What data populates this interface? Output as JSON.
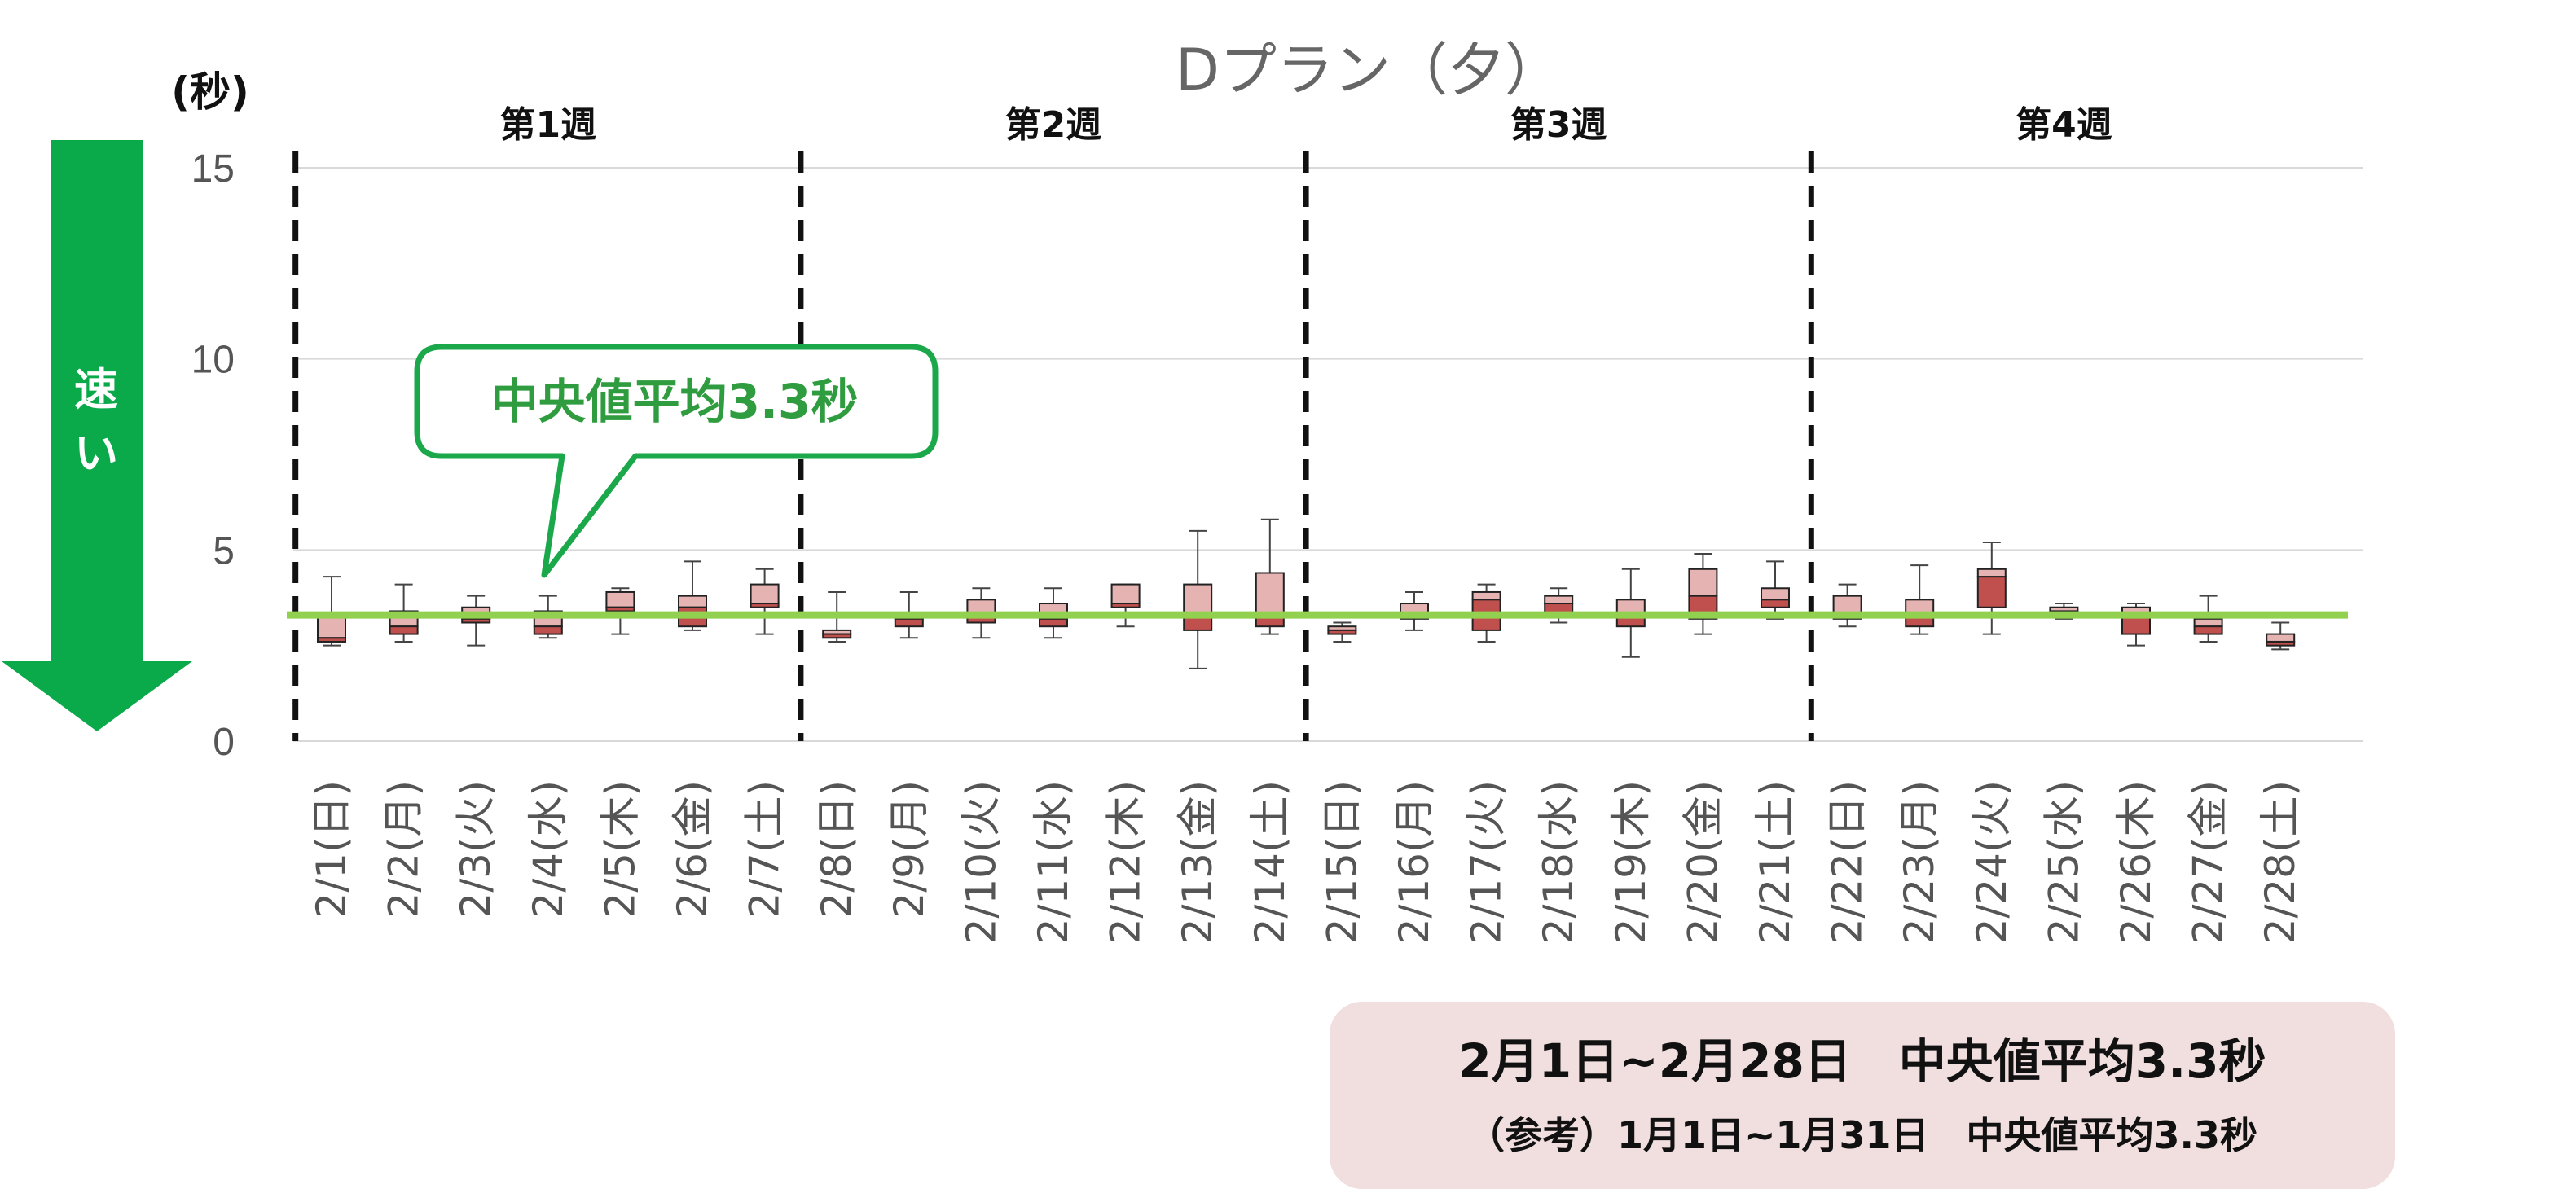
{
  "chart_data": {
    "type": "box",
    "title": "Dプラン（夕）",
    "ylabel": "(秒)",
    "ylim": [
      0,
      15
    ],
    "yticks": [
      0,
      5,
      10,
      15
    ],
    "grid": true,
    "categories": [
      "2/1(日)",
      "2/2(月)",
      "2/3(火)",
      "2/4(水)",
      "2/5(木)",
      "2/6(金)",
      "2/7(土)",
      "2/8(日)",
      "2/9(月)",
      "2/10(火)",
      "2/11(水)",
      "2/12(木)",
      "2/13(金)",
      "2/14(土)",
      "2/15(日)",
      "2/16(月)",
      "2/17(火)",
      "2/18(水)",
      "2/19(木)",
      "2/20(金)",
      "2/21(土)",
      "2/22(日)",
      "2/23(月)",
      "2/24(火)",
      "2/25(水)",
      "2/26(木)",
      "2/27(金)",
      "2/28(土)"
    ],
    "boxes": [
      {
        "min": 2.5,
        "q1": 2.6,
        "median": 2.7,
        "q3": 3.3,
        "max": 4.3
      },
      {
        "min": 2.6,
        "q1": 2.8,
        "median": 3.0,
        "q3": 3.4,
        "max": 4.1
      },
      {
        "min": 2.5,
        "q1": 3.1,
        "median": 3.2,
        "q3": 3.5,
        "max": 3.8
      },
      {
        "min": 2.7,
        "q1": 2.8,
        "median": 3.0,
        "q3": 3.4,
        "max": 3.8
      },
      {
        "min": 2.8,
        "q1": 3.4,
        "median": 3.5,
        "q3": 3.9,
        "max": 4.0
      },
      {
        "min": 2.9,
        "q1": 3.0,
        "median": 3.5,
        "q3": 3.8,
        "max": 4.7
      },
      {
        "min": 2.8,
        "q1": 3.5,
        "median": 3.6,
        "q3": 4.1,
        "max": 4.5
      },
      {
        "min": 2.6,
        "q1": 2.7,
        "median": 2.8,
        "q3": 2.9,
        "max": 3.9
      },
      {
        "min": 2.7,
        "q1": 3.0,
        "median": 3.2,
        "q3": 3.3,
        "max": 3.9
      },
      {
        "min": 2.7,
        "q1": 3.1,
        "median": 3.3,
        "q3": 3.7,
        "max": 4.0
      },
      {
        "min": 2.7,
        "q1": 3.0,
        "median": 3.2,
        "q3": 3.6,
        "max": 4.0
      },
      {
        "min": 3.0,
        "q1": 3.5,
        "median": 3.6,
        "q3": 4.1,
        "max": 4.1
      },
      {
        "min": 1.9,
        "q1": 2.9,
        "median": 3.3,
        "q3": 4.1,
        "max": 5.5
      },
      {
        "min": 2.8,
        "q1": 3.0,
        "median": 3.3,
        "q3": 4.4,
        "max": 5.8
      },
      {
        "min": 2.6,
        "q1": 2.8,
        "median": 2.9,
        "q3": 3.0,
        "max": 3.1
      },
      {
        "min": 2.9,
        "q1": 3.2,
        "median": 3.3,
        "q3": 3.6,
        "max": 3.9
      },
      {
        "min": 2.6,
        "q1": 2.9,
        "median": 3.7,
        "q3": 3.9,
        "max": 4.1
      },
      {
        "min": 3.1,
        "q1": 3.3,
        "median": 3.6,
        "q3": 3.8,
        "max": 4.0
      },
      {
        "min": 2.2,
        "q1": 3.0,
        "median": 3.3,
        "q3": 3.7,
        "max": 4.5
      },
      {
        "min": 2.8,
        "q1": 3.2,
        "median": 3.8,
        "q3": 4.5,
        "max": 4.9
      },
      {
        "min": 3.2,
        "q1": 3.5,
        "median": 3.7,
        "q3": 4.0,
        "max": 4.7
      },
      {
        "min": 3.0,
        "q1": 3.2,
        "median": 3.3,
        "q3": 3.8,
        "max": 4.1
      },
      {
        "min": 2.8,
        "q1": 3.0,
        "median": 3.3,
        "q3": 3.7,
        "max": 4.6
      },
      {
        "min": 2.8,
        "q1": 3.5,
        "median": 4.3,
        "q3": 4.5,
        "max": 5.2
      },
      {
        "min": 3.2,
        "q1": 3.3,
        "median": 3.4,
        "q3": 3.5,
        "max": 3.6
      },
      {
        "min": 2.5,
        "q1": 2.8,
        "median": 3.3,
        "q3": 3.5,
        "max": 3.6
      },
      {
        "min": 2.6,
        "q1": 2.8,
        "median": 3.0,
        "q3": 3.2,
        "max": 3.8
      },
      {
        "min": 2.4,
        "q1": 2.5,
        "median": 2.6,
        "q3": 2.8,
        "max": 3.1
      }
    ],
    "average_median": 3.3,
    "weeks": [
      {
        "label": "第1週",
        "start": 0,
        "end": 7
      },
      {
        "label": "第2週",
        "start": 7,
        "end": 14
      },
      {
        "label": "第3週",
        "start": 14,
        "end": 21
      },
      {
        "label": "第4週",
        "start": 21,
        "end": 28
      }
    ],
    "colors": {
      "box_upper": "#e6b3b3",
      "box_lower": "#c0504d",
      "box_stroke": "#222222",
      "average_line": "#92d050",
      "grid": "#d9d9d9",
      "week_divider": "#111111",
      "arrow": "#0aaa4a",
      "callout": "#1aa84a"
    }
  },
  "labels": {
    "speed": "速い",
    "callout": "中央値平均3.3秒",
    "summary_main": "2月1日~2月28日　中央値平均3.3秒",
    "summary_ref": "（参考）1月1日~1月31日　中央値平均3.3秒"
  }
}
